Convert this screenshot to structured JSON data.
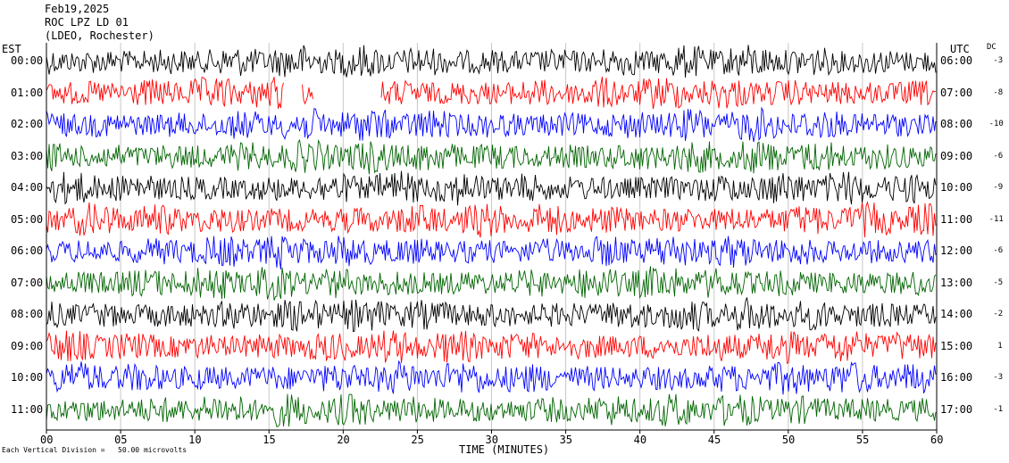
{
  "header": {
    "date": "Feb19,2025",
    "station": "ROC LPZ LD 01",
    "location": "(LDEO, Rochester)"
  },
  "left_tz": "EST",
  "right_tz": "UTC",
  "dc_heading": "DC",
  "footnote": "Each Vertical Division =   50.00 microvolts",
  "colors": {
    "trace_cycle": [
      "#000000",
      "#ff0000",
      "#0000ff",
      "#006400"
    ],
    "grid": "#c8c8c8",
    "axis": "#000000"
  },
  "chart_data": {
    "type": "line",
    "title": "",
    "xlabel": "TIME (MINUTES)",
    "xlim": [
      0,
      60
    ],
    "x_ticks": [
      "00",
      "05",
      "10",
      "15",
      "20",
      "25",
      "30",
      "35",
      "40",
      "45",
      "50",
      "55",
      "60"
    ],
    "vertical_grid_minutes": [
      5,
      10,
      15,
      20,
      25,
      30,
      35,
      40,
      45,
      50,
      55
    ],
    "traces": [
      {
        "est": "00:00",
        "utc": "06:00",
        "dc": "-3",
        "color": "black",
        "gaps_minutes": []
      },
      {
        "est": "01:00",
        "utc": "07:00",
        "dc": "-8",
        "color": "red",
        "gaps_minutes": [
          [
            16.0,
            17.2
          ],
          [
            18.0,
            22.5
          ]
        ]
      },
      {
        "est": "02:00",
        "utc": "08:00",
        "dc": "-10",
        "color": "blue",
        "gaps_minutes": []
      },
      {
        "est": "03:00",
        "utc": "09:00",
        "dc": "-6",
        "color": "green",
        "gaps_minutes": []
      },
      {
        "est": "04:00",
        "utc": "10:00",
        "dc": "-9",
        "color": "black",
        "gaps_minutes": []
      },
      {
        "est": "05:00",
        "utc": "11:00",
        "dc": "-11",
        "color": "red",
        "gaps_minutes": []
      },
      {
        "est": "06:00",
        "utc": "12:00",
        "dc": "-6",
        "color": "blue",
        "gaps_minutes": []
      },
      {
        "est": "07:00",
        "utc": "13:00",
        "dc": "-5",
        "color": "green",
        "gaps_minutes": []
      },
      {
        "est": "08:00",
        "utc": "14:00",
        "dc": "-2",
        "color": "black",
        "gaps_minutes": []
      },
      {
        "est": "09:00",
        "utc": "15:00",
        "dc": "1",
        "color": "red",
        "gaps_minutes": []
      },
      {
        "est": "10:00",
        "utc": "16:00",
        "dc": "-3",
        "color": "blue",
        "gaps_minutes": []
      },
      {
        "est": "11:00",
        "utc": "17:00",
        "dc": "-1",
        "color": "green",
        "gaps_minutes": []
      }
    ]
  }
}
